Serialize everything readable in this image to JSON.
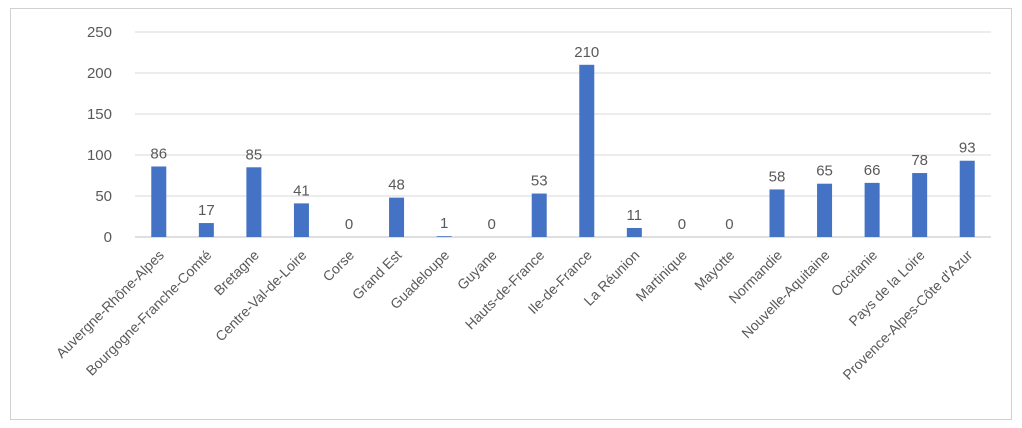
{
  "chart_data": {
    "type": "bar",
    "title": "",
    "xlabel": "",
    "ylabel": "",
    "ylim": [
      0,
      250
    ],
    "yticks": [
      0,
      50,
      100,
      150,
      200,
      250
    ],
    "grid": true,
    "legend": "none",
    "categories": [
      "Auvergne-Rhône-Alpes",
      "Bourgogne-Franche-Comté",
      "Bretagne",
      "Centre-Val-de-Loire",
      "Corse",
      "Grand Est",
      "Guadeloupe",
      "Guyane",
      "Hauts-de-France",
      "Ile-de-France",
      "La Réunion",
      "Martinique",
      "Mayotte",
      "Normandie",
      "Nouvelle-Aquitaine",
      "Occitanie",
      "Pays de la Loire",
      "Provence-Alpes-Côte d'Azur"
    ],
    "values": [
      86,
      17,
      85,
      41,
      0,
      48,
      1,
      0,
      53,
      210,
      11,
      0,
      0,
      58,
      65,
      66,
      78,
      93
    ],
    "colors": {
      "bar": "#4472c4",
      "grid": "#d9d9d9",
      "text": "#595959"
    }
  }
}
